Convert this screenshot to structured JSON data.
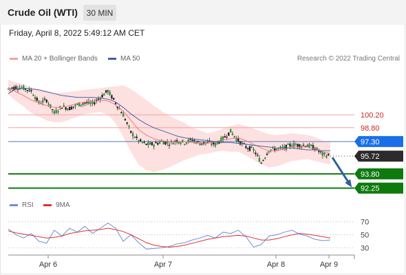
{
  "header": {
    "title": "Crude Oil (WTI)",
    "timeframe": "30 MIN"
  },
  "datetime": "Friday, April 8, 2022 5:49:12 AM CET",
  "legend": {
    "ma20": {
      "label": "MA 20 + Bollinger Bands",
      "color": "#f08080"
    },
    "ma50": {
      "label": "MA 50",
      "color": "#3f5fa0"
    }
  },
  "credit": "Research © 2022 Trading Central",
  "rsi_legend": {
    "rsi": {
      "label": "RSI",
      "color": "#6b8fd6"
    },
    "ma9": {
      "label": "9MA",
      "color": "#e03030"
    }
  },
  "chart_data": [
    {
      "type": "line",
      "title": "Crude Oil (WTI)",
      "timeframe": "30 MIN",
      "x_ticks": [
        "Apr 6",
        "Apr 7",
        "Apr 8",
        "Apr 9"
      ],
      "ylim": [
        91.4,
        105.2
      ],
      "price": {
        "mid": [
          103.0,
          103.2,
          103.1,
          102.8,
          101.5,
          101.8,
          100.4,
          101.1,
          100.9,
          101.3,
          101.5,
          101.4,
          102.1,
          102.8,
          101.5,
          100.2,
          98.3,
          97.4,
          97.0,
          97.0,
          97.3,
          97.1,
          97.4,
          97.2,
          97.5,
          97.1,
          97.2,
          97.0,
          97.6,
          98.4,
          97.4,
          96.7,
          96.4,
          95.0,
          96.4,
          96.5,
          96.6,
          97.0,
          96.9,
          96.9,
          96.6,
          95.9,
          95.72
        ],
        "close_label": "95.72"
      },
      "series": [
        {
          "name": "MA 20 + Bollinger Bands",
          "values": [
            103.2,
            102.7,
            102.3,
            101.8,
            101.5,
            101.2,
            101.0,
            101.0,
            101.2,
            101.4,
            101.6,
            101.7,
            101.8,
            101.7,
            101.3,
            100.6,
            99.6,
            98.6,
            98.0,
            97.6,
            97.4,
            97.3,
            97.3,
            97.3,
            97.2,
            97.2,
            97.1,
            97.3,
            97.5,
            97.6,
            97.7,
            97.4,
            97.0,
            96.6,
            96.3,
            96.3,
            96.5,
            96.7,
            96.7,
            96.7,
            96.5,
            96.2,
            96.0
          ]
        },
        {
          "name": "MA 50",
          "values": [
            102.5,
            103.0,
            103.1,
            103.0,
            102.9,
            102.7,
            102.5,
            102.3,
            102.2,
            102.1,
            102.1,
            102.1,
            102.0,
            101.9,
            101.6,
            101.0,
            100.3,
            99.7,
            99.2,
            98.8,
            98.5,
            98.2,
            97.9,
            97.7,
            97.6,
            97.5,
            97.4,
            97.3,
            97.2,
            97.2,
            97.1,
            97.0,
            96.9,
            96.8,
            96.7,
            96.6,
            96.6,
            96.6,
            96.5,
            96.4,
            96.4,
            96.3,
            96.3
          ]
        }
      ],
      "levels": [
        {
          "value": "100.20",
          "kind": "resistance"
        },
        {
          "value": "98.80",
          "kind": "resistance"
        },
        {
          "value": "97.30",
          "kind": "pivot"
        },
        {
          "value": "93.80",
          "kind": "support"
        },
        {
          "value": "92.25",
          "kind": "support"
        }
      ],
      "scenario": "Bearish arrow from 95.72 toward 92.25"
    },
    {
      "type": "line",
      "title": "RSI",
      "ylim": [
        22,
        78
      ],
      "y_ticks": [
        "70",
        "50",
        "30"
      ],
      "series": [
        {
          "name": "RSI",
          "values": [
            59,
            50,
            45,
            52,
            40,
            37,
            57,
            48,
            60,
            54,
            63,
            52,
            60,
            68,
            60,
            40,
            50,
            38,
            28,
            29,
            30,
            32,
            36,
            38,
            42,
            45,
            49,
            45,
            54,
            52,
            57,
            47,
            31,
            35,
            48,
            50,
            54,
            57,
            51,
            48,
            43,
            41,
            42
          ]
        },
        {
          "name": "9MA",
          "values": [
            56,
            53,
            51,
            49,
            47,
            45,
            46,
            48,
            52,
            54,
            56,
            57,
            58,
            60,
            58,
            55,
            50,
            44,
            38,
            34,
            32,
            31,
            32,
            34,
            37,
            40,
            43,
            45,
            47,
            48,
            49,
            48,
            45,
            42,
            42,
            44,
            47,
            50,
            52,
            51,
            49,
            47,
            45
          ]
        }
      ]
    }
  ]
}
